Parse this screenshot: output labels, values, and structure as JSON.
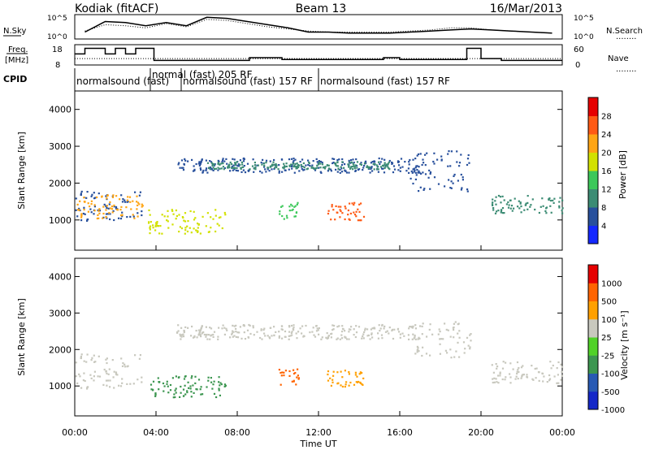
{
  "header": {
    "station": "Kodiak (fitACF)",
    "beam": "Beam 13",
    "date": "16/Mar/2013"
  },
  "noise_panel": {
    "left_label": "N.Sky",
    "right_label": "N.Search",
    "right_legend": "........",
    "left_ticks": [
      "10^5",
      "10^0"
    ],
    "right_ticks": [
      "10^5",
      "10^0"
    ],
    "n_sky": [
      0.25,
      0.75,
      0.7,
      0.55,
      0.7,
      0.55,
      0.95,
      0.9,
      0.75,
      0.6,
      0.45,
      0.25,
      0.25,
      0.2,
      0.2,
      0.2,
      0.25,
      0.3,
      0.35,
      0.4,
      0.35,
      0.3,
      0.25,
      0.2
    ],
    "n_search": [
      0.3,
      0.6,
      0.55,
      0.45,
      0.65,
      0.5,
      0.85,
      0.8,
      0.65,
      0.5,
      0.4,
      0.3,
      0.25,
      0.25,
      0.25,
      0.25,
      0.3,
      0.35,
      0.45,
      0.45,
      0.35,
      0.3,
      0.25,
      0.2
    ]
  },
  "freq_panel": {
    "left_label_1": "Freq.",
    "left_label_2": "[MHz]",
    "right_label": "Nave",
    "right_legend": "........",
    "left_ticks": [
      "18",
      "8"
    ],
    "right_ticks": [
      "60",
      "0"
    ],
    "freq_steps": [
      [
        0,
        0.55
      ],
      [
        0.5,
        0.85
      ],
      [
        1.5,
        0.55
      ],
      [
        2,
        0.85
      ],
      [
        2.5,
        0.55
      ],
      [
        3.0,
        0.85
      ],
      [
        3.9,
        0.2
      ],
      [
        8.6,
        0.35
      ],
      [
        10.2,
        0.25
      ],
      [
        12,
        0.25
      ],
      [
        15.2,
        0.35
      ],
      [
        16,
        0.25
      ],
      [
        19.3,
        0.85
      ],
      [
        20,
        0.3
      ],
      [
        21,
        0.2
      ],
      [
        24,
        0.2
      ]
    ],
    "nave_level": 0.3
  },
  "cpid": {
    "label": "CPID",
    "programs": [
      "normalsound (fast)",
      "normal (fast) 205 RF",
      "normalsound (fast) 157 RF",
      "normalsound (fast) 157 RF"
    ]
  },
  "chart_data": [
    {
      "type": "heatmap",
      "title": "Power",
      "ylabel": "Slant Range [km]",
      "xlabel": "Time UT",
      "xlim": [
        "00:00",
        "24:00"
      ],
      "ylim": [
        180,
        4500
      ],
      "yticks": [
        1000,
        2000,
        3000,
        4000
      ],
      "colorbar_label": "Power [dB]",
      "colorbar_ticks": [
        4,
        8,
        12,
        16,
        20,
        24,
        28
      ],
      "colorbar_colors": [
        "#1428ff",
        "#28509c",
        "#3c8c74",
        "#3cc85a",
        "#d2e100",
        "#ffa514",
        "#ff5a14",
        "#e60000"
      ],
      "scatter_bands": [
        {
          "t0": 0.0,
          "t1": 3.4,
          "r0": 1000,
          "r1": 1800,
          "color": "#28509c"
        },
        {
          "t0": 0.0,
          "t1": 3.4,
          "r0": 1050,
          "r1": 1700,
          "color": "#ffa514"
        },
        {
          "t0": 3.6,
          "t1": 7.5,
          "r0": 650,
          "r1": 1300,
          "color": "#d2e100"
        },
        {
          "t0": 5.0,
          "t1": 17.0,
          "r0": 2300,
          "r1": 2700,
          "color": "#28509c"
        },
        {
          "t0": 6.5,
          "t1": 15.5,
          "r0": 2400,
          "r1": 2600,
          "color": "#3c8c74"
        },
        {
          "t0": 10.0,
          "t1": 11.0,
          "r0": 1050,
          "r1": 1500,
          "color": "#3cc85a"
        },
        {
          "t0": 12.4,
          "t1": 14.2,
          "r0": 1000,
          "r1": 1500,
          "color": "#ff5a14"
        },
        {
          "t0": 16.5,
          "t1": 19.5,
          "r0": 1800,
          "r1": 2900,
          "color": "#28509c"
        },
        {
          "t0": 20.5,
          "t1": 24.0,
          "r0": 1200,
          "r1": 1700,
          "color": "#3c8c74"
        }
      ]
    },
    {
      "type": "heatmap",
      "title": "Velocity",
      "ylabel": "Slant Range [km]",
      "xlabel": "Time UT",
      "xlim": [
        "00:00",
        "24:00"
      ],
      "ylim": [
        180,
        4500
      ],
      "yticks": [
        1000,
        2000,
        3000,
        4000
      ],
      "xticks": [
        "00:00",
        "04:00",
        "08:00",
        "12:00",
        "16:00",
        "20:00",
        "00:00"
      ],
      "colorbar_label": "Velocity [m s⁻¹]",
      "colorbar_ticks": [
        "1000",
        "500",
        "100",
        "25",
        "-25",
        "-100",
        "-500",
        "-1000"
      ],
      "colorbar_colors": [
        "#1428c8",
        "#285ab4",
        "#3c9650",
        "#50d228",
        "#c8c8be",
        "#ffa000",
        "#ff6400",
        "#e60000"
      ],
      "scatter_bands": [
        {
          "t0": 0.0,
          "t1": 3.4,
          "r0": 950,
          "r1": 1900,
          "color": "#c8c8be"
        },
        {
          "t0": 3.6,
          "t1": 7.5,
          "r0": 700,
          "r1": 1300,
          "color": "#3c9650"
        },
        {
          "t0": 5.0,
          "t1": 17.0,
          "r0": 2300,
          "r1": 2700,
          "color": "#c8c8be"
        },
        {
          "t0": 10.0,
          "t1": 11.0,
          "r0": 1050,
          "r1": 1500,
          "color": "#ff6400"
        },
        {
          "t0": 12.4,
          "t1": 14.2,
          "r0": 1000,
          "r1": 1500,
          "color": "#ffa000"
        },
        {
          "t0": 16.5,
          "t1": 19.5,
          "r0": 1800,
          "r1": 2800,
          "color": "#c8c8be"
        },
        {
          "t0": 20.5,
          "t1": 24.0,
          "r0": 1100,
          "r1": 1700,
          "color": "#c8c8be"
        }
      ]
    }
  ]
}
